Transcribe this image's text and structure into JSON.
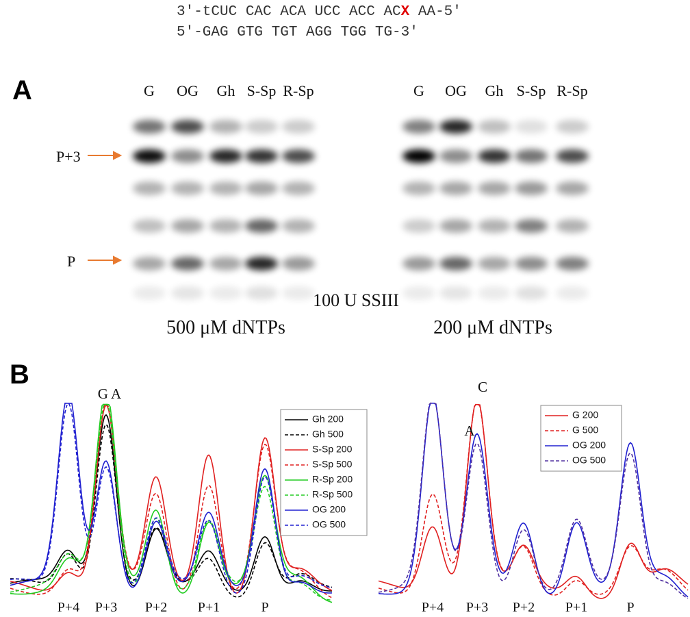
{
  "sequence": {
    "top_start": "3′-tCUC CAC ACA UCC ACC AC",
    "lesion": "X",
    "top_end": " AA-5′",
    "bottom": "5′-GAG GTG TGT AGG TGG TG-3′"
  },
  "panel_a": {
    "label": "A",
    "lanes_left": [
      "G",
      "OG",
      "Gh",
      "S-Sp",
      "R-Sp"
    ],
    "lanes_right": [
      "G",
      "OG",
      "Gh",
      "S-Sp",
      "R-Sp"
    ],
    "markers": [
      "P+3",
      "P"
    ],
    "center_label": "100 U SSIII",
    "left_caption": "500 μM dNTPs",
    "right_caption": "200 μM dNTPs"
  },
  "panel_b": {
    "label": "B",
    "left": {
      "peak_labels": [
        "G A"
      ],
      "x_labels": [
        "P+4",
        "P+3",
        "P+2",
        "P+1",
        "P"
      ],
      "legend": [
        {
          "name": "Gh 200",
          "color": "#000000",
          "dashed": false
        },
        {
          "name": "Gh 500",
          "color": "#000000",
          "dashed": true
        },
        {
          "name": "S-Sp 200",
          "color": "#e02020",
          "dashed": false
        },
        {
          "name": "S-Sp 500",
          "color": "#e02020",
          "dashed": true
        },
        {
          "name": "R-Sp 200",
          "color": "#22cc22",
          "dashed": false
        },
        {
          "name": "R-Sp 500",
          "color": "#22cc22",
          "dashed": true
        },
        {
          "name": "OG 200",
          "color": "#2020d0",
          "dashed": false
        },
        {
          "name": "OG 500",
          "color": "#2020d0",
          "dashed": true
        }
      ]
    },
    "right": {
      "peak_labels": [
        "C",
        "A"
      ],
      "x_labels": [
        "P+4",
        "P+3",
        "P+2",
        "P+1",
        "P"
      ],
      "legend": [
        {
          "name": "G 200",
          "color": "#e02020",
          "dashed": false
        },
        {
          "name": "G 500",
          "color": "#e02020",
          "dashed": true
        },
        {
          "name": "OG 200",
          "color": "#2020d0",
          "dashed": false
        },
        {
          "name": "OG 500",
          "color": "#5030a0",
          "dashed": true
        }
      ]
    }
  }
}
